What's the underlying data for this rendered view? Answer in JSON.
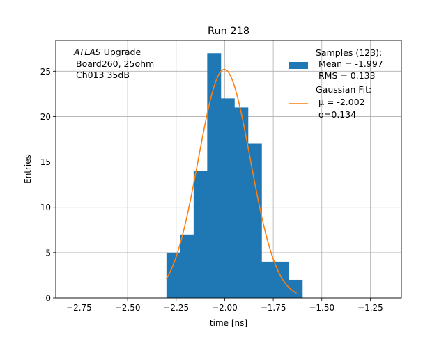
{
  "chart_data": {
    "type": "bar",
    "title": "Run 218",
    "xlabel": "time [ns]",
    "ylabel": "Entries",
    "xlim": [
      -2.87,
      -1.09
    ],
    "ylim": [
      0,
      28.4
    ],
    "xticks": [
      -2.75,
      -2.5,
      -2.25,
      -2.0,
      -1.75,
      -1.5,
      -1.25
    ],
    "xtick_labels": [
      "−2.75",
      "−2.50",
      "−2.25",
      "−2.00",
      "−1.75",
      "−1.50",
      "−1.25"
    ],
    "yticks": [
      0,
      5,
      10,
      15,
      20,
      25
    ],
    "ytick_labels": [
      "0",
      "5",
      "10",
      "15",
      "20",
      "25"
    ],
    "grid": true,
    "legend_position": "top-right",
    "annotation": {
      "line1_italic": "ATLAS",
      "line1_rest": " Upgrade",
      "line2": "Board260, 25ohm",
      "line3": "Ch013 35dB"
    },
    "histogram": {
      "name": "Samples (123):",
      "bin_edges": [
        -2.3,
        -2.23,
        -2.16,
        -2.09,
        -2.02,
        -1.95,
        -1.88,
        -1.81,
        -1.74,
        -1.67,
        -1.6
      ],
      "counts": [
        5,
        7,
        14,
        27,
        22,
        21,
        17,
        4,
        4,
        2
      ],
      "color": "#1f77b4",
      "legend_lines": [
        " Mean = -1.997",
        " RMS = 0.133"
      ]
    },
    "fit": {
      "name": "Gaussian Fit:",
      "mu": -2.002,
      "sigma": 0.134,
      "amplitude": 25.2,
      "x_range": [
        -2.3,
        -1.63
      ],
      "color": "#ff7f0e",
      "legend_lines": [
        " μ = -2.002",
        " σ=0.134"
      ]
    }
  }
}
